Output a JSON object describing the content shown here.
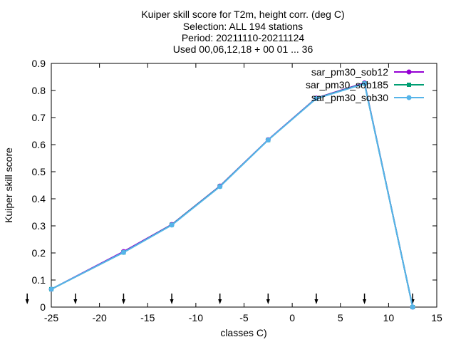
{
  "chart_data": {
    "type": "line",
    "title_lines": [
      "Kuiper skill score  for T2m, height corr. (deg C)",
      "Selection: ALL     194 stations",
      "Period: 20211110-20211124",
      "Used 00,06,12,18 + 00 01 ... 36"
    ],
    "xlabel": "classes C)",
    "ylabel": "Kuiper skill score",
    "xlim": [
      -25,
      15
    ],
    "ylim": [
      0,
      0.9
    ],
    "x_ticks": [
      -25,
      -20,
      -15,
      -10,
      -5,
      0,
      5,
      10,
      15
    ],
    "y_ticks": [
      0,
      0.1,
      0.2,
      0.3,
      0.4,
      0.5,
      0.6,
      0.7,
      0.8,
      0.9
    ],
    "x_tick_labels": [
      "-25",
      "-20",
      "-15",
      "-10",
      "-5",
      "0",
      "5",
      "10",
      "15"
    ],
    "y_tick_labels": [
      "0",
      "0.1",
      "0.2",
      "0.3",
      "0.4",
      "0.5",
      "0.6",
      "0.7",
      "0.8",
      "0.9"
    ],
    "grid": false,
    "legend_position": "top-right",
    "class_markers_x": [
      -27.5,
      -22.5,
      -17.5,
      -12.5,
      -7.5,
      -2.5,
      2.5,
      7.5,
      12.5,
      17.5
    ],
    "series": [
      {
        "name": "sar_pm30_sob12",
        "color": "#9400d3",
        "x": [
          -25,
          -17.5,
          -12.5,
          -7.5,
          -2.5,
          2.5,
          7.5,
          12.5
        ],
        "y": [
          0.066,
          0.205,
          0.305,
          0.447,
          0.618,
          0.772,
          0.828,
          0.0
        ]
      },
      {
        "name": "sar_pm30_sob185",
        "color": "#009e73",
        "x": [
          -25,
          -17.5,
          -12.5,
          -7.5,
          -2.5,
          2.5,
          7.5,
          12.5
        ],
        "y": [
          0.066,
          0.202,
          0.304,
          0.446,
          0.617,
          0.771,
          0.826,
          0.0
        ]
      },
      {
        "name": "sar_pm30_sob30",
        "color": "#56b4e9",
        "x": [
          -25,
          -17.5,
          -12.5,
          -7.5,
          -2.5,
          2.5,
          7.5,
          12.5
        ],
        "y": [
          0.066,
          0.202,
          0.303,
          0.445,
          0.617,
          0.77,
          0.825,
          0.0
        ]
      }
    ]
  }
}
